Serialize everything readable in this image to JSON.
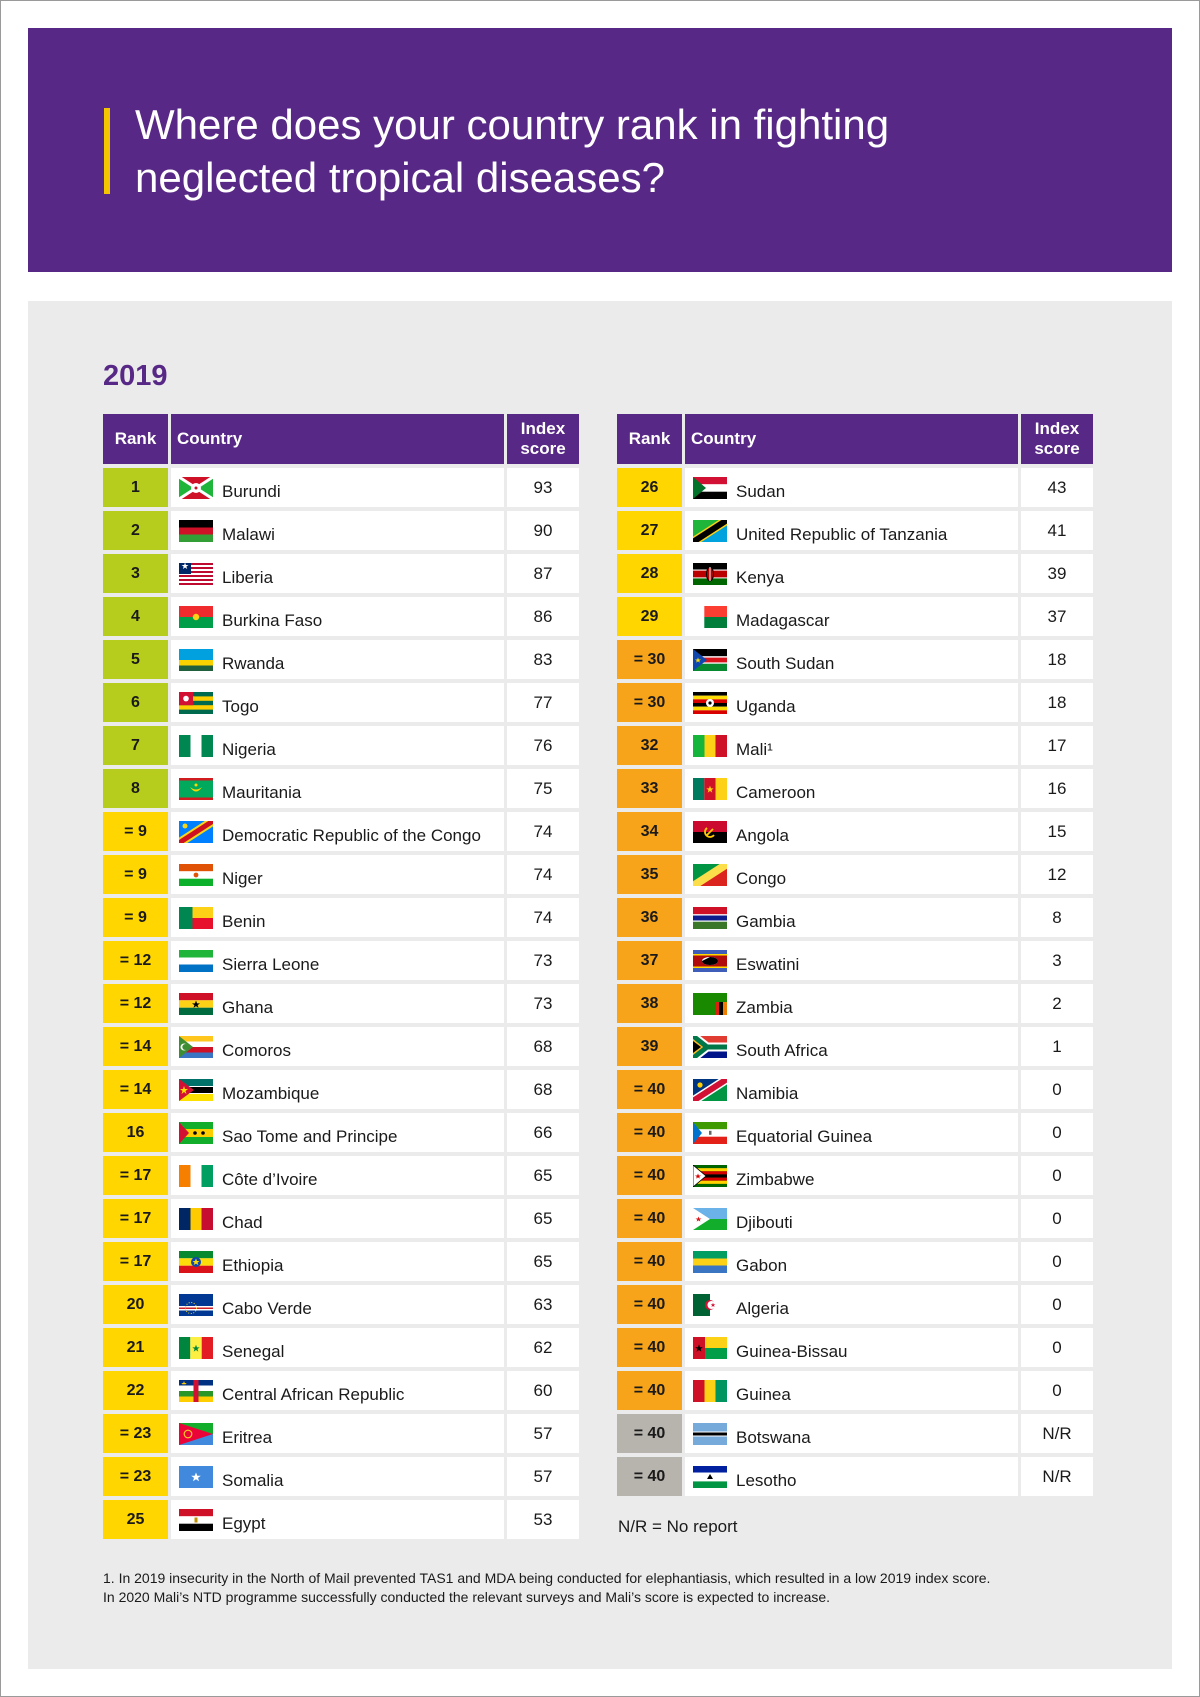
{
  "header": {
    "title": "Where does your country rank in fighting neglected tropical diseases?"
  },
  "year": "2019",
  "columns": {
    "rank": "Rank",
    "country": "Country",
    "score": "Index score"
  },
  "colors": {
    "purple": "#582886",
    "green": "#b6cd1d",
    "yellow": "#ffd600",
    "orange": "#f8a41a",
    "grey": "#b7b3ad"
  },
  "left_rows": [
    {
      "rank": "1",
      "country": "Burundi",
      "score": "93",
      "tier": "green",
      "flag": "burundi"
    },
    {
      "rank": "2",
      "country": "Malawi",
      "score": "90",
      "tier": "green",
      "flag": "malawi"
    },
    {
      "rank": "3",
      "country": "Liberia",
      "score": "87",
      "tier": "green",
      "flag": "liberia"
    },
    {
      "rank": "4",
      "country": "Burkina Faso",
      "score": "86",
      "tier": "green",
      "flag": "burkina"
    },
    {
      "rank": "5",
      "country": "Rwanda",
      "score": "83",
      "tier": "green",
      "flag": "rwanda"
    },
    {
      "rank": "6",
      "country": "Togo",
      "score": "77",
      "tier": "green",
      "flag": "togo"
    },
    {
      "rank": "7",
      "country": "Nigeria",
      "score": "76",
      "tier": "green",
      "flag": "nigeria"
    },
    {
      "rank": "8",
      "country": "Mauritania",
      "score": "75",
      "tier": "green",
      "flag": "mauritania"
    },
    {
      "rank": "= 9",
      "country": "Democratic Republic of the Congo",
      "score": "74",
      "tier": "yellow",
      "flag": "drc"
    },
    {
      "rank": "= 9",
      "country": "Niger",
      "score": "74",
      "tier": "yellow",
      "flag": "niger"
    },
    {
      "rank": "= 9",
      "country": "Benin",
      "score": "74",
      "tier": "yellow",
      "flag": "benin"
    },
    {
      "rank": "= 12",
      "country": "Sierra Leone",
      "score": "73",
      "tier": "yellow",
      "flag": "sierraleone"
    },
    {
      "rank": "= 12",
      "country": "Ghana",
      "score": "73",
      "tier": "yellow",
      "flag": "ghana"
    },
    {
      "rank": "= 14",
      "country": "Comoros",
      "score": "68",
      "tier": "yellow",
      "flag": "comoros"
    },
    {
      "rank": "= 14",
      "country": "Mozambique",
      "score": "68",
      "tier": "yellow",
      "flag": "mozambique"
    },
    {
      "rank": "16",
      "country": "Sao Tome and Principe",
      "score": "66",
      "tier": "yellow",
      "flag": "saotome"
    },
    {
      "rank": "= 17",
      "country": "Côte d’Ivoire",
      "score": "65",
      "tier": "yellow",
      "flag": "ivory"
    },
    {
      "rank": "= 17",
      "country": "Chad",
      "score": "65",
      "tier": "yellow",
      "flag": "chad"
    },
    {
      "rank": "= 17",
      "country": "Ethiopia",
      "score": "65",
      "tier": "yellow",
      "flag": "ethiopia"
    },
    {
      "rank": "20",
      "country": "Cabo Verde",
      "score": "63",
      "tier": "yellow",
      "flag": "caboverde"
    },
    {
      "rank": "21",
      "country": "Senegal",
      "score": "62",
      "tier": "yellow",
      "flag": "senegal"
    },
    {
      "rank": "22",
      "country": "Central African Republic",
      "score": "60",
      "tier": "yellow",
      "flag": "car"
    },
    {
      "rank": "= 23",
      "country": "Eritrea",
      "score": "57",
      "tier": "yellow",
      "flag": "eritrea"
    },
    {
      "rank": "= 23",
      "country": "Somalia",
      "score": "57",
      "tier": "yellow",
      "flag": "somalia"
    },
    {
      "rank": "25",
      "country": "Egypt",
      "score": "53",
      "tier": "yellow",
      "flag": "egypt"
    }
  ],
  "right_rows": [
    {
      "rank": "26",
      "country": "Sudan",
      "score": "43",
      "tier": "yellow",
      "flag": "sudan"
    },
    {
      "rank": "27",
      "country": "United Republic of Tanzania",
      "score": "41",
      "tier": "yellow",
      "flag": "tanzania"
    },
    {
      "rank": "28",
      "country": "Kenya",
      "score": "39",
      "tier": "yellow",
      "flag": "kenya"
    },
    {
      "rank": "29",
      "country": "Madagascar",
      "score": "37",
      "tier": "yellow",
      "flag": "madagascar"
    },
    {
      "rank": "= 30",
      "country": "South Sudan",
      "score": "18",
      "tier": "orange",
      "flag": "southsudan"
    },
    {
      "rank": "= 30",
      "country": "Uganda",
      "score": "18",
      "tier": "orange",
      "flag": "uganda"
    },
    {
      "rank": "32",
      "country": "Mali¹",
      "score": "17",
      "tier": "orange",
      "flag": "mali"
    },
    {
      "rank": "33",
      "country": "Cameroon",
      "score": "16",
      "tier": "orange",
      "flag": "cameroon"
    },
    {
      "rank": "34",
      "country": "Angola",
      "score": "15",
      "tier": "orange",
      "flag": "angola"
    },
    {
      "rank": "35",
      "country": "Congo",
      "score": "12",
      "tier": "orange",
      "flag": "congo"
    },
    {
      "rank": "36",
      "country": "Gambia",
      "score": "8",
      "tier": "orange",
      "flag": "gambia"
    },
    {
      "rank": "37",
      "country": "Eswatini",
      "score": "3",
      "tier": "orange",
      "flag": "eswatini"
    },
    {
      "rank": "38",
      "country": "Zambia",
      "score": "2",
      "tier": "orange",
      "flag": "zambia"
    },
    {
      "rank": "39",
      "country": "South Africa",
      "score": "1",
      "tier": "orange",
      "flag": "southafrica"
    },
    {
      "rank": "= 40",
      "country": "Namibia",
      "score": "0",
      "tier": "orange",
      "flag": "namibia"
    },
    {
      "rank": "= 40",
      "country": "Equatorial Guinea",
      "score": "0",
      "tier": "orange",
      "flag": "eqguinea"
    },
    {
      "rank": "= 40",
      "country": "Zimbabwe",
      "score": "0",
      "tier": "orange",
      "flag": "zimbabwe"
    },
    {
      "rank": "= 40",
      "country": "Djibouti",
      "score": "0",
      "tier": "orange",
      "flag": "djibouti"
    },
    {
      "rank": "= 40",
      "country": "Gabon",
      "score": "0",
      "tier": "orange",
      "flag": "gabon"
    },
    {
      "rank": "= 40",
      "country": "Algeria",
      "score": "0",
      "tier": "orange",
      "flag": "algeria"
    },
    {
      "rank": "= 40",
      "country": "Guinea-Bissau",
      "score": "0",
      "tier": "orange",
      "flag": "guineabissau"
    },
    {
      "rank": "= 40",
      "country": "Guinea",
      "score": "0",
      "tier": "orange",
      "flag": "guinea"
    },
    {
      "rank": "= 40",
      "country": "Botswana",
      "score": "N/R",
      "tier": "grey",
      "flag": "botswana"
    },
    {
      "rank": "= 40",
      "country": "Lesotho",
      "score": "N/R",
      "tier": "grey",
      "flag": "lesotho"
    }
  ],
  "legend": "N/R = No report",
  "footnote": {
    "line1": "1. In 2019 insecurity in the North of Mail prevented TAS1 and MDA being conducted for elephantiasis, which resulted in a low 2019 index score.",
    "line2": "In 2020 Mali’s NTD programme successfully conducted the relevant surveys and Mali’s score is expected to increase."
  }
}
